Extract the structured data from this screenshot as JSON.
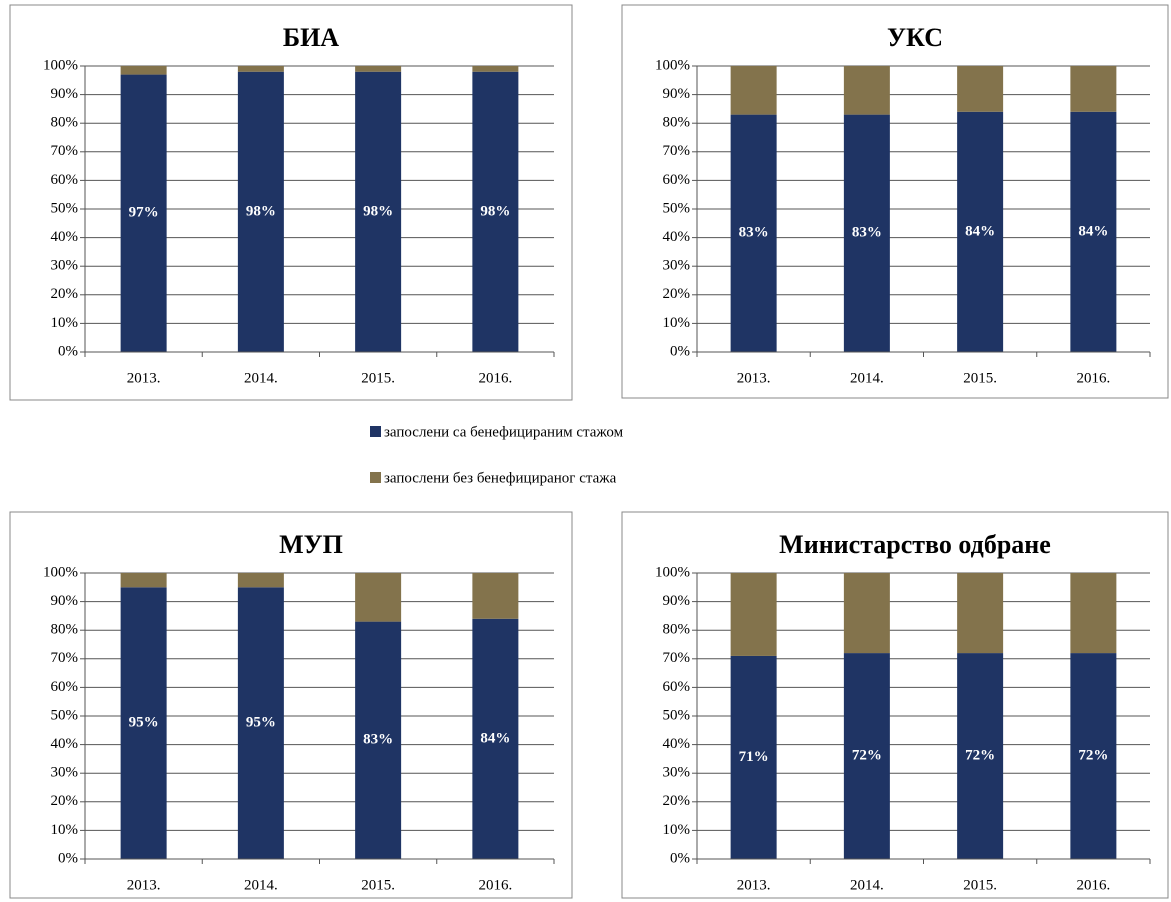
{
  "chart_data": [
    {
      "type": "bar",
      "stacked": true,
      "title": "БИА",
      "categories": [
        "2013.",
        "2014.",
        "2015.",
        "2016."
      ],
      "series": [
        {
          "name": "запослени са бенефицираним стажом",
          "color": "#1f3464",
          "values": [
            97,
            98,
            98,
            98
          ],
          "value_labels": [
            "97%",
            "98%",
            "98%",
            "98%"
          ]
        },
        {
          "name": "запослени без бенефицираног стажа",
          "color": "#83734c",
          "values": [
            3,
            2,
            2,
            2
          ]
        }
      ],
      "ylim": [
        0,
        100
      ],
      "yticks": [
        {
          "value": 0,
          "label": "0%"
        },
        {
          "value": 10,
          "label": "10%"
        },
        {
          "value": 20,
          "label": "20%"
        },
        {
          "value": 30,
          "label": "30%"
        },
        {
          "value": 40,
          "label": "40%"
        },
        {
          "value": 50,
          "label": "50%"
        },
        {
          "value": 60,
          "label": "60%"
        },
        {
          "value": 70,
          "label": "70%"
        },
        {
          "value": 80,
          "label": "80%"
        },
        {
          "value": 90,
          "label": "90%"
        },
        {
          "value": 100,
          "label": "100%"
        }
      ],
      "grid": true
    },
    {
      "type": "bar",
      "stacked": true,
      "title": "УКС",
      "categories": [
        "2013.",
        "2014.",
        "2015.",
        "2016."
      ],
      "series": [
        {
          "color": "#1f3464",
          "values": [
            83,
            83,
            84,
            84
          ],
          "value_labels": [
            "83%",
            "83%",
            "84%",
            "84%"
          ]
        },
        {
          "color": "#83734c",
          "values": [
            17,
            17,
            16,
            16
          ]
        }
      ],
      "ylim": [
        0,
        100
      ],
      "yticks": [
        {
          "value": 0,
          "label": "0%"
        },
        {
          "value": 10,
          "label": "10%"
        },
        {
          "value": 20,
          "label": "20%"
        },
        {
          "value": 30,
          "label": "30%"
        },
        {
          "value": 40,
          "label": "40%"
        },
        {
          "value": 50,
          "label": "50%"
        },
        {
          "value": 60,
          "label": "60%"
        },
        {
          "value": 70,
          "label": "70%"
        },
        {
          "value": 80,
          "label": "80%"
        },
        {
          "value": 90,
          "label": "90%"
        },
        {
          "value": 100,
          "label": "100%"
        }
      ],
      "grid": true
    },
    {
      "type": "bar",
      "stacked": true,
      "title": "МУП",
      "categories": [
        "2013.",
        "2014.",
        "2015.",
        "2016."
      ],
      "series": [
        {
          "color": "#1f3464",
          "values": [
            95,
            95,
            83,
            84
          ],
          "value_labels": [
            "95%",
            "95%",
            "83%",
            "84%"
          ]
        },
        {
          "color": "#83734c",
          "values": [
            5,
            5,
            17,
            16
          ]
        }
      ],
      "ylim": [
        0,
        100
      ],
      "yticks": [
        {
          "value": 0,
          "label": "0%"
        },
        {
          "value": 10,
          "label": "10%"
        },
        {
          "value": 20,
          "label": "20%"
        },
        {
          "value": 30,
          "label": "30%"
        },
        {
          "value": 40,
          "label": "40%"
        },
        {
          "value": 50,
          "label": "50%"
        },
        {
          "value": 60,
          "label": "60%"
        },
        {
          "value": 70,
          "label": "70%"
        },
        {
          "value": 80,
          "label": "80%"
        },
        {
          "value": 90,
          "label": "90%"
        },
        {
          "value": 100,
          "label": "100%"
        }
      ],
      "grid": true
    },
    {
      "type": "bar",
      "stacked": true,
      "title": "Министарство одбране",
      "categories": [
        "2013.",
        "2014.",
        "2015.",
        "2016."
      ],
      "series": [
        {
          "color": "#1f3464",
          "values": [
            71,
            72,
            72,
            72
          ],
          "value_labels": [
            "71%",
            "72%",
            "72%",
            "72%"
          ]
        },
        {
          "color": "#83734c",
          "values": [
            29,
            28,
            28,
            28
          ]
        }
      ],
      "ylim": [
        0,
        100
      ],
      "yticks": [
        {
          "value": 0,
          "label": "0%"
        },
        {
          "value": 10,
          "label": "10%"
        },
        {
          "value": 20,
          "label": "20%"
        },
        {
          "value": 30,
          "label": "30%"
        },
        {
          "value": 40,
          "label": "40%"
        },
        {
          "value": 50,
          "label": "50%"
        },
        {
          "value": 60,
          "label": "60%"
        },
        {
          "value": 70,
          "label": "70%"
        },
        {
          "value": 80,
          "label": "80%"
        },
        {
          "value": 90,
          "label": "90%"
        },
        {
          "value": 100,
          "label": "100%"
        }
      ],
      "grid": true
    }
  ]
}
